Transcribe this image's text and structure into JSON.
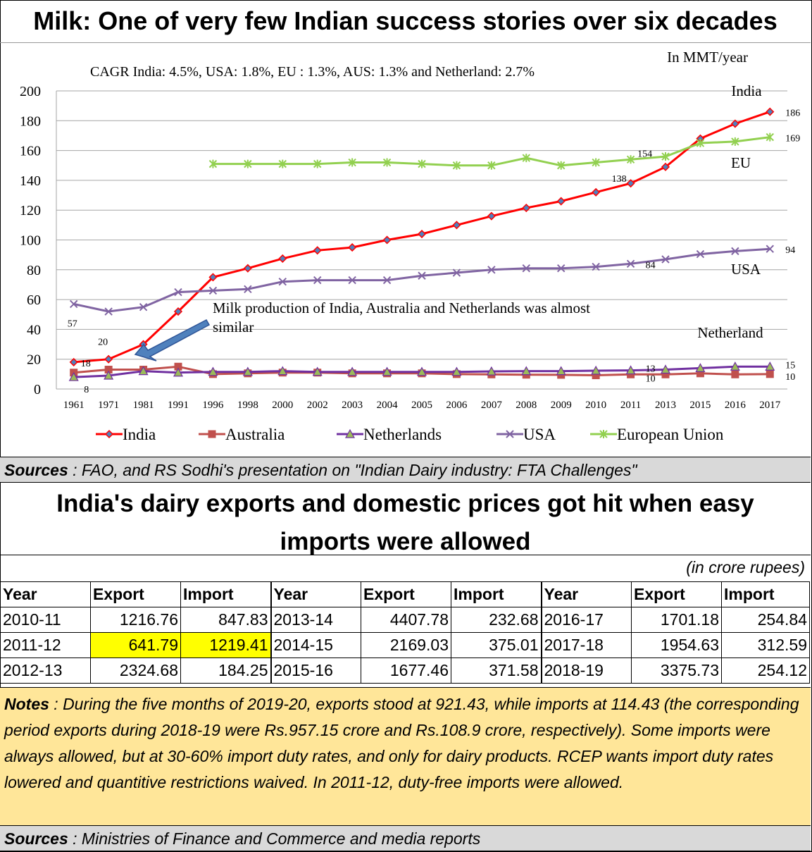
{
  "title": "Milk: One of very few Indian success stories over six decades",
  "chart_data": {
    "type": "line",
    "title": "Milk: One of very few Indian success stories over six decades",
    "unit_label": "In MMT/year",
    "cagr_note": "CAGR  India: 4.5%, USA: 1.8%, EU : 1.3%, AUS: 1.3% and Netherland: 2.7%",
    "annotation": "Milk production of India, Australia and Netherlands was almost similar",
    "categories": [
      "1961",
      "1971",
      "1981",
      "1991",
      "1996",
      "1998",
      "2000",
      "2002",
      "2003",
      "2004",
      "2005",
      "2006",
      "2007",
      "2008",
      "2009",
      "2010",
      "2011",
      "2013",
      "2015",
      "2016",
      "2017"
    ],
    "ylim": [
      0,
      200
    ],
    "yticks": [
      0,
      20,
      40,
      60,
      80,
      100,
      120,
      140,
      160,
      180,
      200
    ],
    "grid": true,
    "legend_position": "bottom",
    "series": [
      {
        "name": "India",
        "color": "#ff0000",
        "marker": "diamond",
        "values": [
          18,
          20,
          30,
          52,
          75,
          81,
          87.5,
          93,
          95,
          100,
          104,
          110,
          116,
          121.5,
          126,
          132,
          138,
          149,
          168,
          178,
          186
        ]
      },
      {
        "name": "Australia",
        "color": "#c0504d",
        "marker": "square",
        "values": [
          11,
          13,
          13,
          15,
          10,
          10.5,
          11,
          11,
          10.5,
          10.5,
          10.5,
          10,
          9.8,
          9.6,
          9.5,
          9.2,
          9.8,
          9.8,
          10.5,
          9.8,
          10
        ]
      },
      {
        "name": "Netherlands",
        "color": "#7030a0",
        "marker": "triangle",
        "values": [
          8,
          9,
          12,
          11,
          11.5,
          11.5,
          12,
          11.5,
          11.5,
          11.5,
          11.5,
          11.5,
          11.8,
          12,
          12,
          12.3,
          12.5,
          13,
          14,
          15,
          15
        ]
      },
      {
        "name": "USA",
        "color": "#8064a2",
        "marker": "x",
        "values": [
          57,
          52,
          55,
          65,
          66,
          67,
          72,
          73,
          73,
          73,
          76,
          78,
          80,
          81,
          81,
          82,
          84,
          87,
          90.5,
          92.5,
          94
        ]
      },
      {
        "name": "European Union",
        "color": "#92d050",
        "marker": "star",
        "values": [
          null,
          null,
          null,
          null,
          151,
          151,
          151,
          151,
          152,
          152,
          151,
          150,
          150,
          155,
          150,
          152,
          154,
          156,
          165,
          166,
          169
        ]
      }
    ],
    "data_labels": [
      {
        "series": "India",
        "category": "1961",
        "text": "18"
      },
      {
        "series": "India",
        "category": "1971",
        "text": "20"
      },
      {
        "series": "India",
        "category": "2011",
        "text": "138"
      },
      {
        "series": "India",
        "category": "2017",
        "text": "186"
      },
      {
        "series": "European Union",
        "category": "2011",
        "text": "154"
      },
      {
        "series": "European Union",
        "category": "2017",
        "text": "169"
      },
      {
        "series": "USA",
        "category": "1961",
        "text": "57"
      },
      {
        "series": "USA",
        "category": "2011",
        "text": "84"
      },
      {
        "series": "USA",
        "category": "2017",
        "text": "94"
      },
      {
        "series": "Netherlands",
        "category": "1961",
        "text": "8"
      },
      {
        "series": "Netherlands",
        "category": "2011",
        "text": "13"
      },
      {
        "series": "Netherlands",
        "category": "2017",
        "text": "15"
      },
      {
        "series": "Australia",
        "category": "2011",
        "text": "10"
      },
      {
        "series": "Australia",
        "category": "2017",
        "text": "10"
      }
    ],
    "series_labels": [
      {
        "series": "India",
        "text": "India"
      },
      {
        "series": "European Union",
        "text": "EU"
      },
      {
        "series": "USA",
        "text": "USA"
      },
      {
        "series": "Netherlands",
        "text": "Netherland"
      }
    ]
  },
  "chart_sources": {
    "label": "Sources",
    "text": " : FAO, and RS Sodhi's presentation on \"Indian Dairy industry: FTA Challenges\""
  },
  "table_title": {
    "line1": "India's dairy exports and domestic prices got hit when easy",
    "line2": "imports were allowed"
  },
  "table_unit": "(in crore rupees)",
  "table": {
    "headers": [
      "Year",
      "Export",
      "Import"
    ],
    "rows": [
      [
        [
          "2010-11",
          "1216.76",
          "847.83"
        ],
        [
          "2013-14",
          "4407.78",
          "232.68"
        ],
        [
          "2016-17",
          "1701.18",
          "254.84"
        ]
      ],
      [
        [
          "2011-12",
          "641.79",
          "1219.41"
        ],
        [
          "2014-15",
          "2169.03",
          "375.01"
        ],
        [
          "2017-18",
          "1954.63",
          "312.59"
        ]
      ],
      [
        [
          "2012-13",
          "2324.68",
          "184.25"
        ],
        [
          "2015-16",
          "1677.46",
          "371.58"
        ],
        [
          "2018-19",
          "3375.73",
          "254.12"
        ]
      ]
    ],
    "highlight_color": "#ffff00"
  },
  "notes": {
    "label": "Notes",
    "text": " : During the  five months of 2019-20, exports stood at 921.43, while imports at 114.43 (the corresponding period exports during 2018-19 were Rs.957.15 crore and Rs.108.9 crore, respectively). Some imports were always allowed, but at 30-60% import duty rates, and only for dairy products. RCEP wants import duty rates lowered and quantitive restrictions waived. In 2011-12, duty-free imports were allowed."
  },
  "table_sources": {
    "label": "Sources",
    "text": " : Ministries of Finance and Commerce and media reports"
  }
}
